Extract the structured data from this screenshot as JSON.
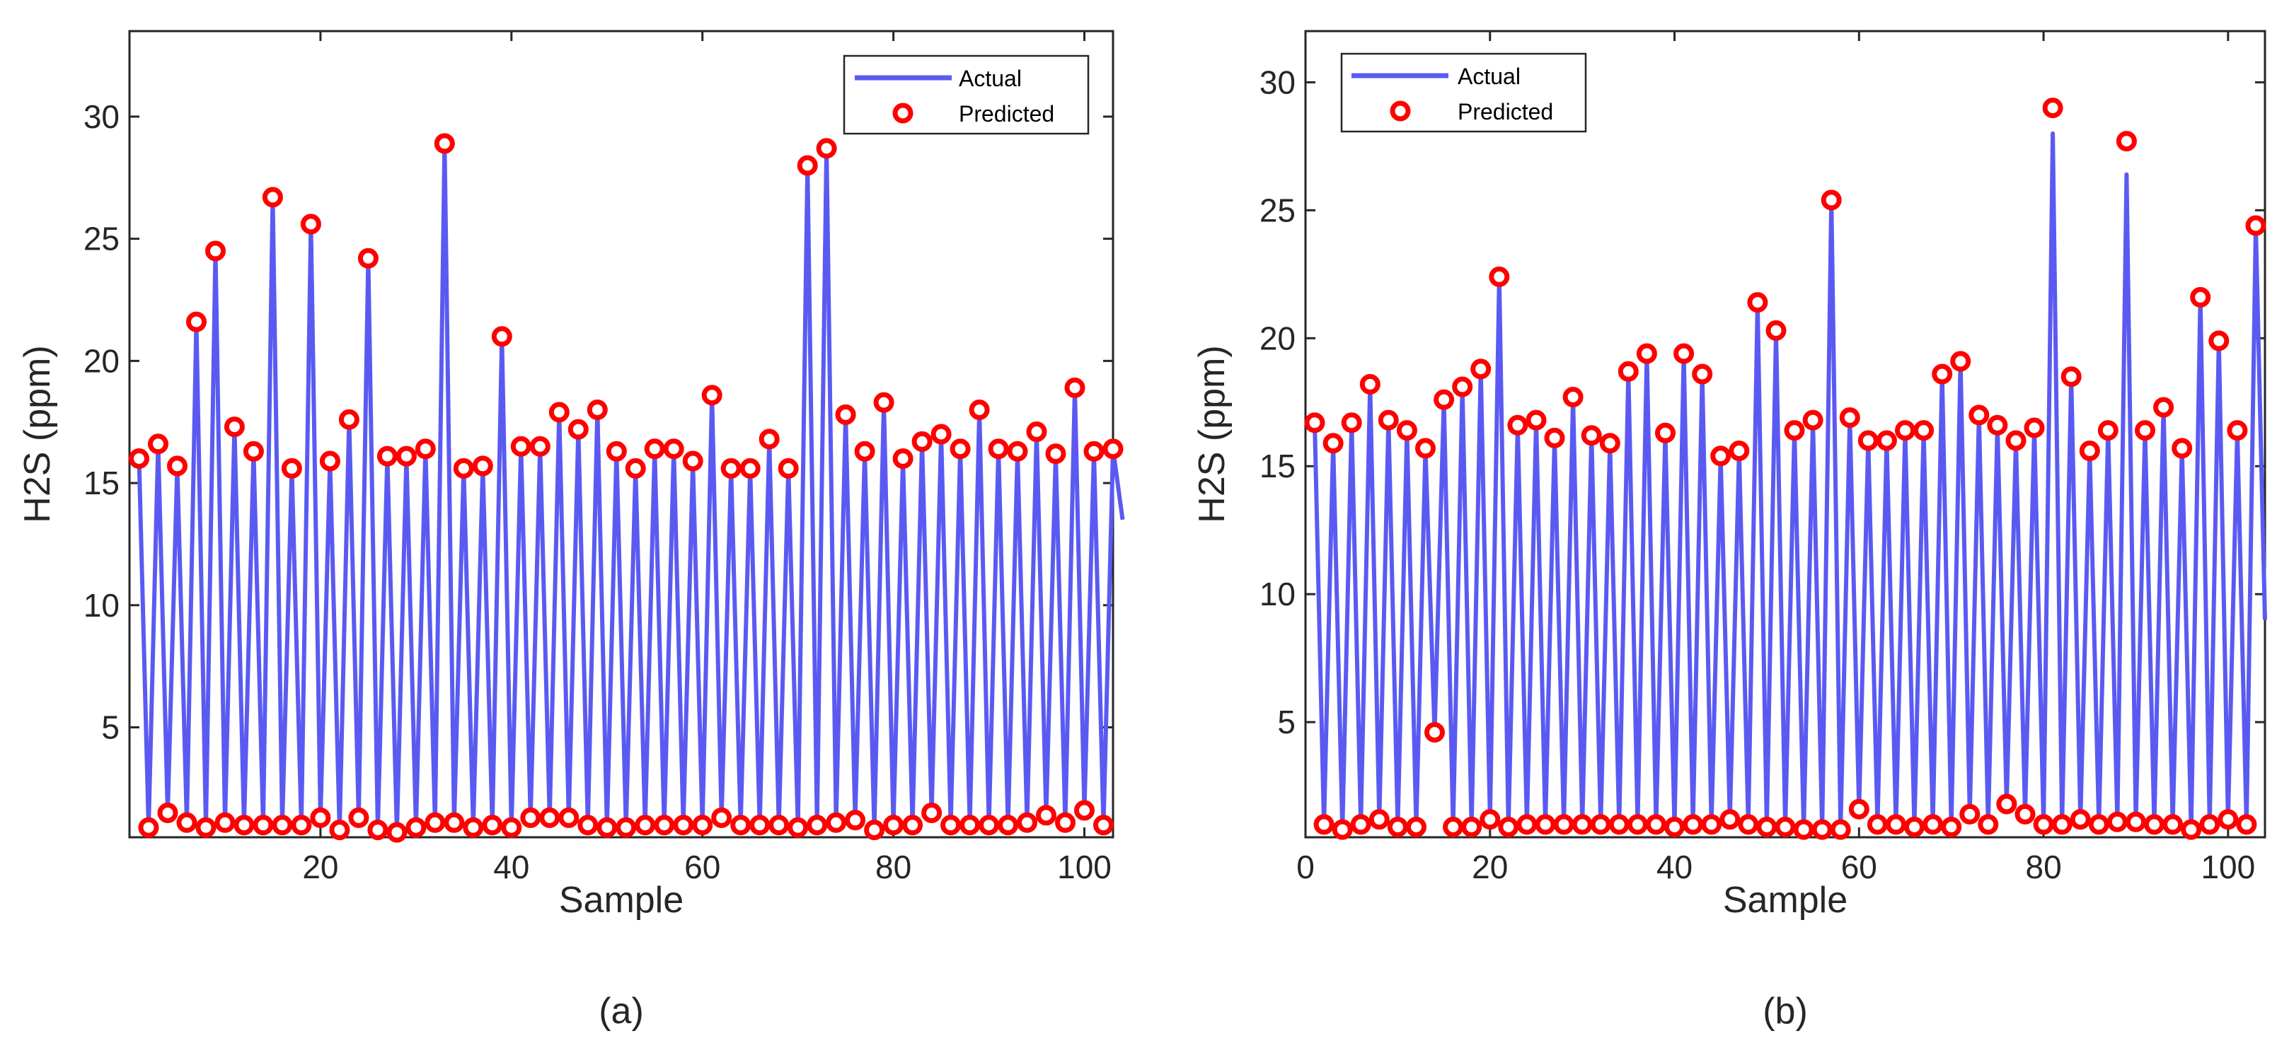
{
  "colors": {
    "actual": "#5a5af2",
    "predicted": "#ff0000",
    "axis": "#262626",
    "background": "#ffffff"
  },
  "chart_data": [
    {
      "type": "line",
      "panel_label": "(a)",
      "xlabel": "Sample",
      "ylabel": "H2S (ppm)",
      "xlim": [
        0,
        103
      ],
      "ylim": [
        0.5,
        33.5
      ],
      "xticks": [
        20,
        40,
        60,
        80,
        100
      ],
      "yticks": [
        5,
        10,
        15,
        20,
        25,
        30
      ],
      "grid": false,
      "legend": {
        "position": "top-right",
        "entries": [
          "Actual",
          "Predicted"
        ]
      },
      "series": [
        {
          "name": "Actual",
          "style": "line",
          "values": [
            16.0,
            0.9,
            16.6,
            1.5,
            15.7,
            1.1,
            21.6,
            0.9,
            24.5,
            1.1,
            17.3,
            1.0,
            16.3,
            1.0,
            26.7,
            1.0,
            15.6,
            1.0,
            25.6,
            1.3,
            15.9,
            0.8,
            17.6,
            1.3,
            24.2,
            0.8,
            16.1,
            0.7,
            16.1,
            0.9,
            16.4,
            1.1,
            28.9,
            1.1,
            15.6,
            0.9,
            15.7,
            1.0,
            21.0,
            0.9,
            16.5,
            1.3,
            16.5,
            1.3,
            17.9,
            1.3,
            17.2,
            1.0,
            18.0,
            0.9,
            16.3,
            0.9,
            15.6,
            1.0,
            16.4,
            1.0,
            16.4,
            1.0,
            15.9,
            1.0,
            18.6,
            1.3,
            15.6,
            1.0,
            15.6,
            1.0,
            16.8,
            1.0,
            15.6,
            0.9,
            28.0,
            1.0,
            28.7,
            1.1,
            17.8,
            1.2,
            16.3,
            0.8,
            18.3,
            1.0,
            16.0,
            1.0,
            16.7,
            1.5,
            17.0,
            1.0,
            16.4,
            1.0,
            18.0,
            1.0,
            16.4,
            1.0,
            16.3,
            1.1,
            17.1,
            1.4,
            16.2,
            1.1,
            18.9,
            1.6,
            16.3,
            1.0,
            16.4,
            13.5
          ]
        },
        {
          "name": "Predicted",
          "style": "markers",
          "values": [
            16.0,
            0.9,
            16.6,
            1.5,
            15.7,
            1.1,
            21.6,
            0.9,
            24.5,
            1.1,
            17.3,
            1.0,
            16.3,
            1.0,
            26.7,
            1.0,
            15.6,
            1.0,
            25.6,
            1.3,
            15.9,
            0.8,
            17.6,
            1.3,
            24.2,
            0.8,
            16.1,
            0.7,
            16.1,
            0.9,
            16.4,
            1.1,
            28.9,
            1.1,
            15.6,
            0.9,
            15.7,
            1.0,
            21.0,
            0.9,
            16.5,
            1.3,
            16.5,
            1.3,
            17.9,
            1.3,
            17.2,
            1.0,
            18.0,
            0.9,
            16.3,
            0.9,
            15.6,
            1.0,
            16.4,
            1.0,
            16.4,
            1.0,
            15.9,
            1.0,
            18.6,
            1.3,
            15.6,
            1.0,
            15.6,
            1.0,
            16.8,
            1.0,
            15.6,
            0.9,
            28.0,
            1.0,
            28.7,
            1.1,
            17.8,
            1.2,
            16.3,
            0.8,
            18.3,
            1.0,
            16.0,
            1.0,
            16.7,
            1.5,
            17.0,
            1.0,
            16.4,
            1.0,
            18.0,
            1.0,
            16.4,
            1.0,
            16.3,
            1.1,
            17.1,
            1.4,
            16.2,
            1.1,
            18.9,
            1.6,
            16.3,
            1.0,
            16.4
          ]
        }
      ]
    },
    {
      "type": "line",
      "panel_label": "(b)",
      "xlabel": "Sample",
      "ylabel": "H2S (ppm)",
      "xlim": [
        0,
        104
      ],
      "ylim": [
        0.5,
        32
      ],
      "xticks": [
        0,
        20,
        40,
        60,
        80,
        100
      ],
      "yticks": [
        5,
        10,
        15,
        20,
        25,
        30
      ],
      "grid": false,
      "legend": {
        "position": "top-left",
        "entries": [
          "Actual",
          "Predicted"
        ]
      },
      "series": [
        {
          "name": "Actual",
          "style": "line",
          "values": [
            16.7,
            1.0,
            15.9,
            0.8,
            16.7,
            1.0,
            18.2,
            1.2,
            16.8,
            0.9,
            16.4,
            0.9,
            15.7,
            4.6,
            17.6,
            0.9,
            18.1,
            0.9,
            18.8,
            1.2,
            22.4,
            0.9,
            16.6,
            1.0,
            16.8,
            1.0,
            16.1,
            1.0,
            17.7,
            1.0,
            16.2,
            1.0,
            15.9,
            1.0,
            18.7,
            1.0,
            19.4,
            1.0,
            16.3,
            0.9,
            19.4,
            1.0,
            18.6,
            1.0,
            15.4,
            1.2,
            15.6,
            1.0,
            21.4,
            0.9,
            20.3,
            0.9,
            16.4,
            0.8,
            16.8,
            0.8,
            25.4,
            0.8,
            16.9,
            1.6,
            16.0,
            1.0,
            16.0,
            1.0,
            16.4,
            0.9,
            16.4,
            1.0,
            18.6,
            0.9,
            19.1,
            1.4,
            17.0,
            1.0,
            16.6,
            1.8,
            16.0,
            1.4,
            16.5,
            1.0,
            28.0,
            1.0,
            18.5,
            1.2,
            15.6,
            1.0,
            16.4,
            1.1,
            26.4,
            1.1,
            16.4,
            1.0,
            17.3,
            1.0,
            15.7,
            0.8,
            21.6,
            1.0,
            19.9,
            1.2,
            16.4,
            1.0,
            24.4,
            9.0
          ]
        },
        {
          "name": "Predicted",
          "style": "markers",
          "values": [
            16.7,
            1.0,
            15.9,
            0.8,
            16.7,
            1.0,
            18.2,
            1.2,
            16.8,
            0.9,
            16.4,
            0.9,
            15.7,
            4.6,
            17.6,
            0.9,
            18.1,
            0.9,
            18.8,
            1.2,
            22.4,
            0.9,
            16.6,
            1.0,
            16.8,
            1.0,
            16.1,
            1.0,
            17.7,
            1.0,
            16.2,
            1.0,
            15.9,
            1.0,
            18.7,
            1.0,
            19.4,
            1.0,
            16.3,
            0.9,
            19.4,
            1.0,
            18.6,
            1.0,
            15.4,
            1.2,
            15.6,
            1.0,
            21.4,
            0.9,
            20.3,
            0.9,
            16.4,
            0.8,
            16.8,
            0.8,
            25.4,
            0.8,
            16.9,
            1.6,
            16.0,
            1.0,
            16.0,
            1.0,
            16.4,
            0.9,
            16.4,
            1.0,
            18.6,
            0.9,
            19.1,
            1.4,
            17.0,
            1.0,
            16.6,
            1.8,
            16.0,
            1.4,
            16.5,
            1.0,
            29.0,
            1.0,
            18.5,
            1.2,
            15.6,
            1.0,
            16.4,
            1.1,
            27.7,
            1.1,
            16.4,
            1.0,
            17.3,
            1.0,
            15.7,
            0.8,
            21.6,
            1.0,
            19.9,
            1.2,
            16.4,
            1.0,
            24.4
          ]
        }
      ]
    }
  ]
}
